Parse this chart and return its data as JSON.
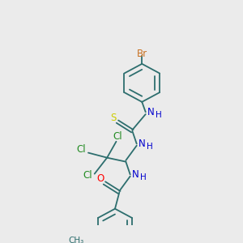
{
  "bg_color": "#ebebeb",
  "bond_color": "#2d6e6e",
  "br_color": "#c87020",
  "cl_color": "#228B22",
  "n_color": "#0000cd",
  "o_color": "#ff0000",
  "s_color": "#cccc00",
  "h_color": "#0000cd",
  "fig_width": 3.0,
  "fig_height": 3.0,
  "dpi": 100,
  "xlim": [
    0,
    10
  ],
  "ylim": [
    0,
    10
  ]
}
